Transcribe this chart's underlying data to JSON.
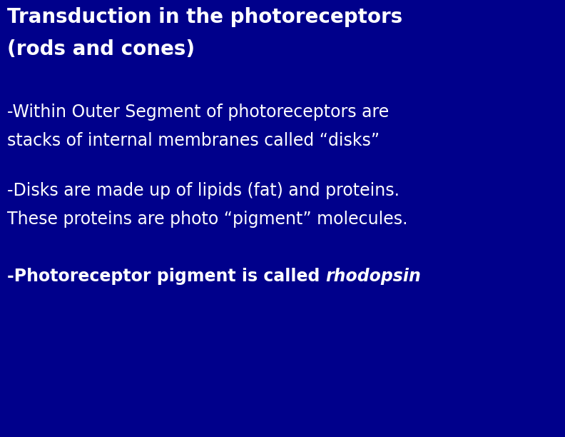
{
  "background_color": "#00008B",
  "title_line1": "Transduction in the photoreceptors",
  "title_line2": "(rods and cones)",
  "title_color": "#FFFFFF",
  "title_fontsize": 20,
  "bullet1_line1": "-Within Outer Segment of photoreceptors are",
  "bullet1_line2": "stacks of internal membranes called “disks”",
  "bullet2_line1": "-Disks are made up of lipids (fat) and proteins.",
  "bullet2_line2": "These proteins are photo “pigment” molecules.",
  "bullet3_prefix": "-Photoreceptor pigment is called ",
  "bullet3_italic": "rhodopsin",
  "body_color": "#FFFFFF",
  "body_fontsize": 17,
  "fig_width": 7.92,
  "fig_height": 6.12,
  "dpi": 100
}
